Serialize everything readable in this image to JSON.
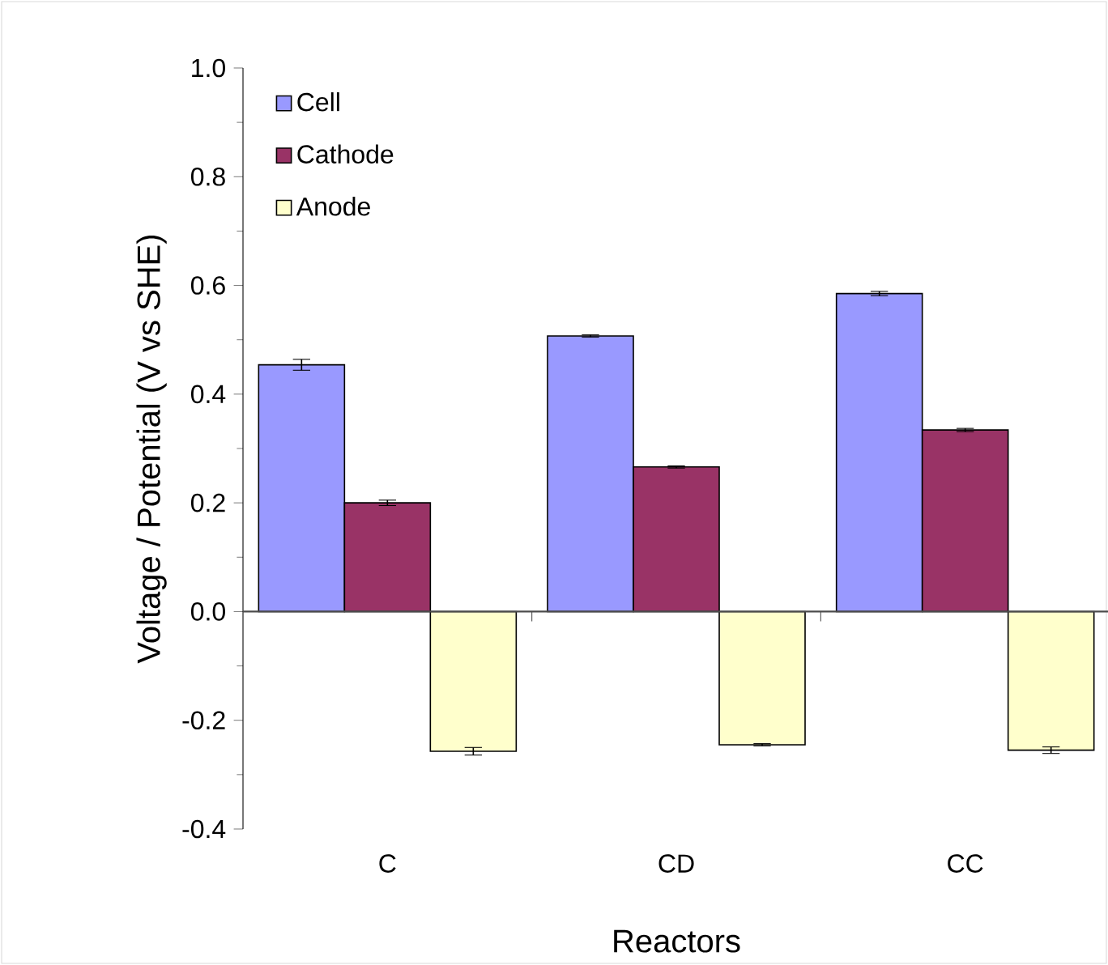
{
  "chart_data": {
    "type": "bar",
    "xlabel": "Reactors",
    "ylabel": "Voltage / Potential (V vs SHE)",
    "categories": [
      "C",
      "CD",
      "CC"
    ],
    "series": [
      {
        "name": "Cell",
        "color": "#9999ff",
        "values": [
          0.454,
          0.507,
          0.585
        ],
        "errors": [
          0.01,
          0.002,
          0.004
        ]
      },
      {
        "name": "Cathode",
        "color": "#993366",
        "values": [
          0.2,
          0.266,
          0.334
        ],
        "errors": [
          0.005,
          0.002,
          0.003
        ]
      },
      {
        "name": "Anode",
        "color": "#ffffcc",
        "values": [
          -0.257,
          -0.245,
          -0.255
        ],
        "errors": [
          0.007,
          0.002,
          0.006
        ]
      }
    ],
    "ylim": [
      -0.4,
      1.0
    ],
    "yticks": [
      {
        "value": -0.4,
        "label": "-0.4"
      },
      {
        "value": -0.2,
        "label": "-0.2"
      },
      {
        "value": 0,
        "label": "0.0"
      },
      {
        "value": 0.2,
        "label": "0.2"
      },
      {
        "value": 0.4,
        "label": "0.4"
      },
      {
        "value": 0.6,
        "label": "0.6"
      },
      {
        "value": 0.8,
        "label": "0.8"
      },
      {
        "value": 1.0,
        "label": "1.0"
      }
    ],
    "legend": "top left"
  }
}
